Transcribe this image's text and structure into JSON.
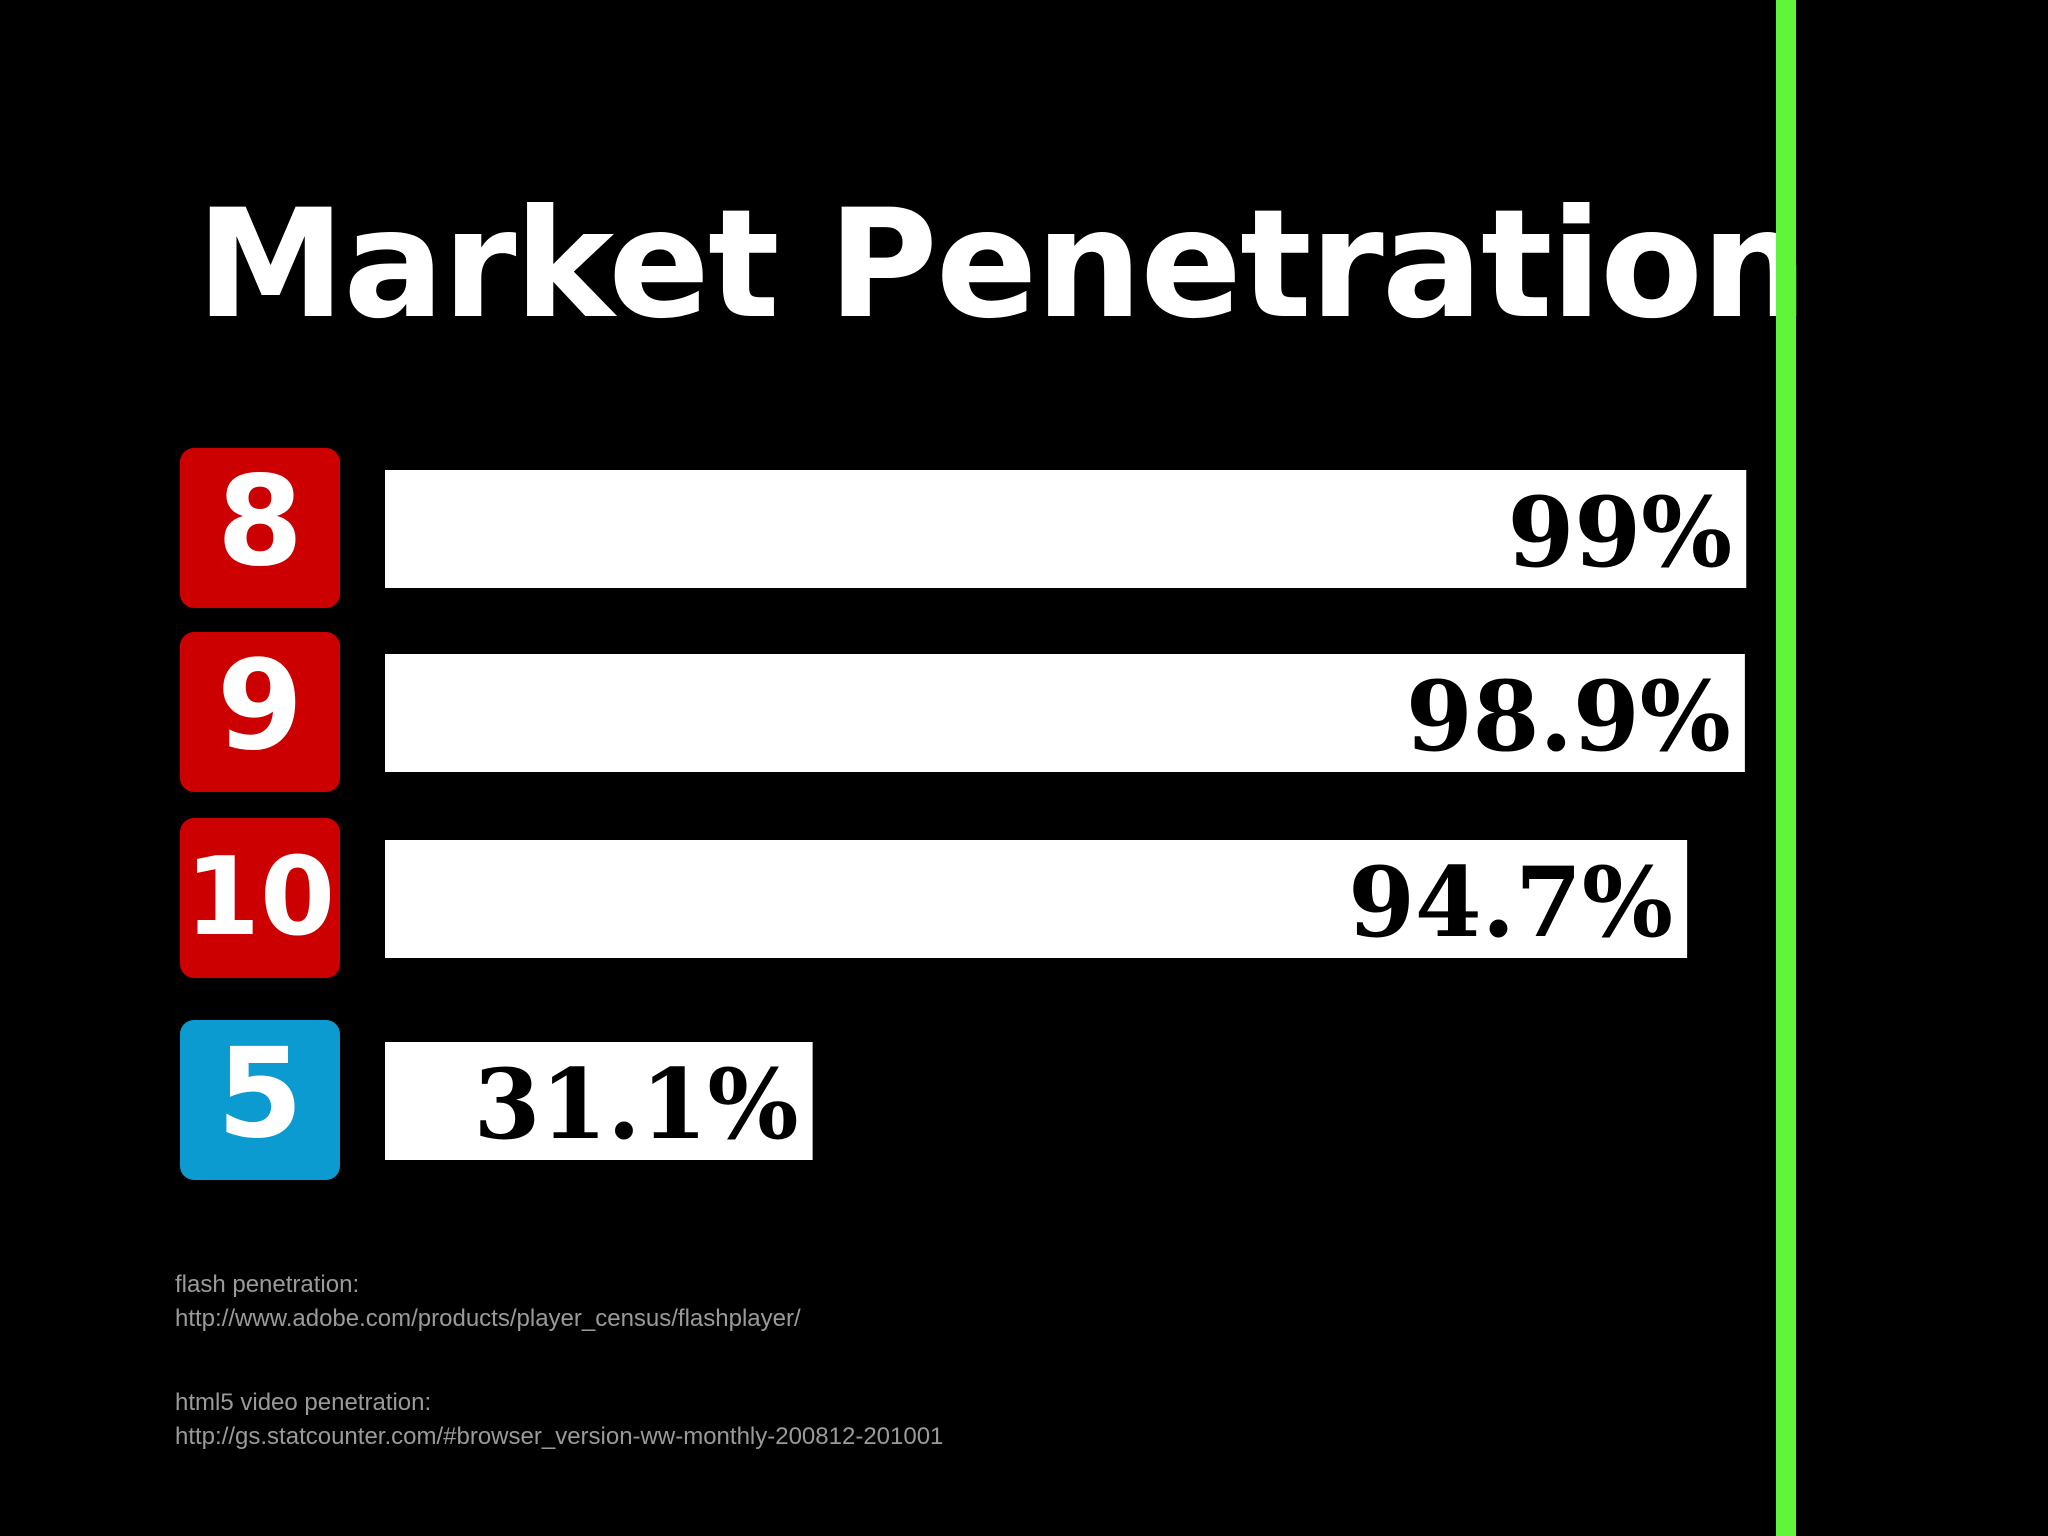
{
  "title": "Market Penetration",
  "accent_color": "#5ff53a",
  "chart_data": {
    "type": "bar",
    "orientation": "horizontal",
    "categories": [
      "8",
      "9",
      "10",
      "5"
    ],
    "values": [
      99,
      98.9,
      94.7,
      31.1
    ],
    "value_labels": [
      "99%",
      "98.9%",
      "94.7%",
      "31.1%"
    ],
    "category_colors": [
      "#cc0000",
      "#cc0000",
      "#cc0000",
      "#0c9bd0"
    ],
    "bar_color": "#ffffff",
    "xlim": [
      0,
      100
    ],
    "title": "Market Penetration",
    "xlabel": "",
    "ylabel": "",
    "grid": false,
    "legend": "none"
  },
  "sources": [
    {
      "label": "flash penetration:",
      "url": "http://www.adobe.com/products/player_census/flashplayer/"
    },
    {
      "label": "html5 video penetration:",
      "url": "http://gs.statcounter.com/#browser_version-ww-monthly-200812-201001"
    }
  ]
}
